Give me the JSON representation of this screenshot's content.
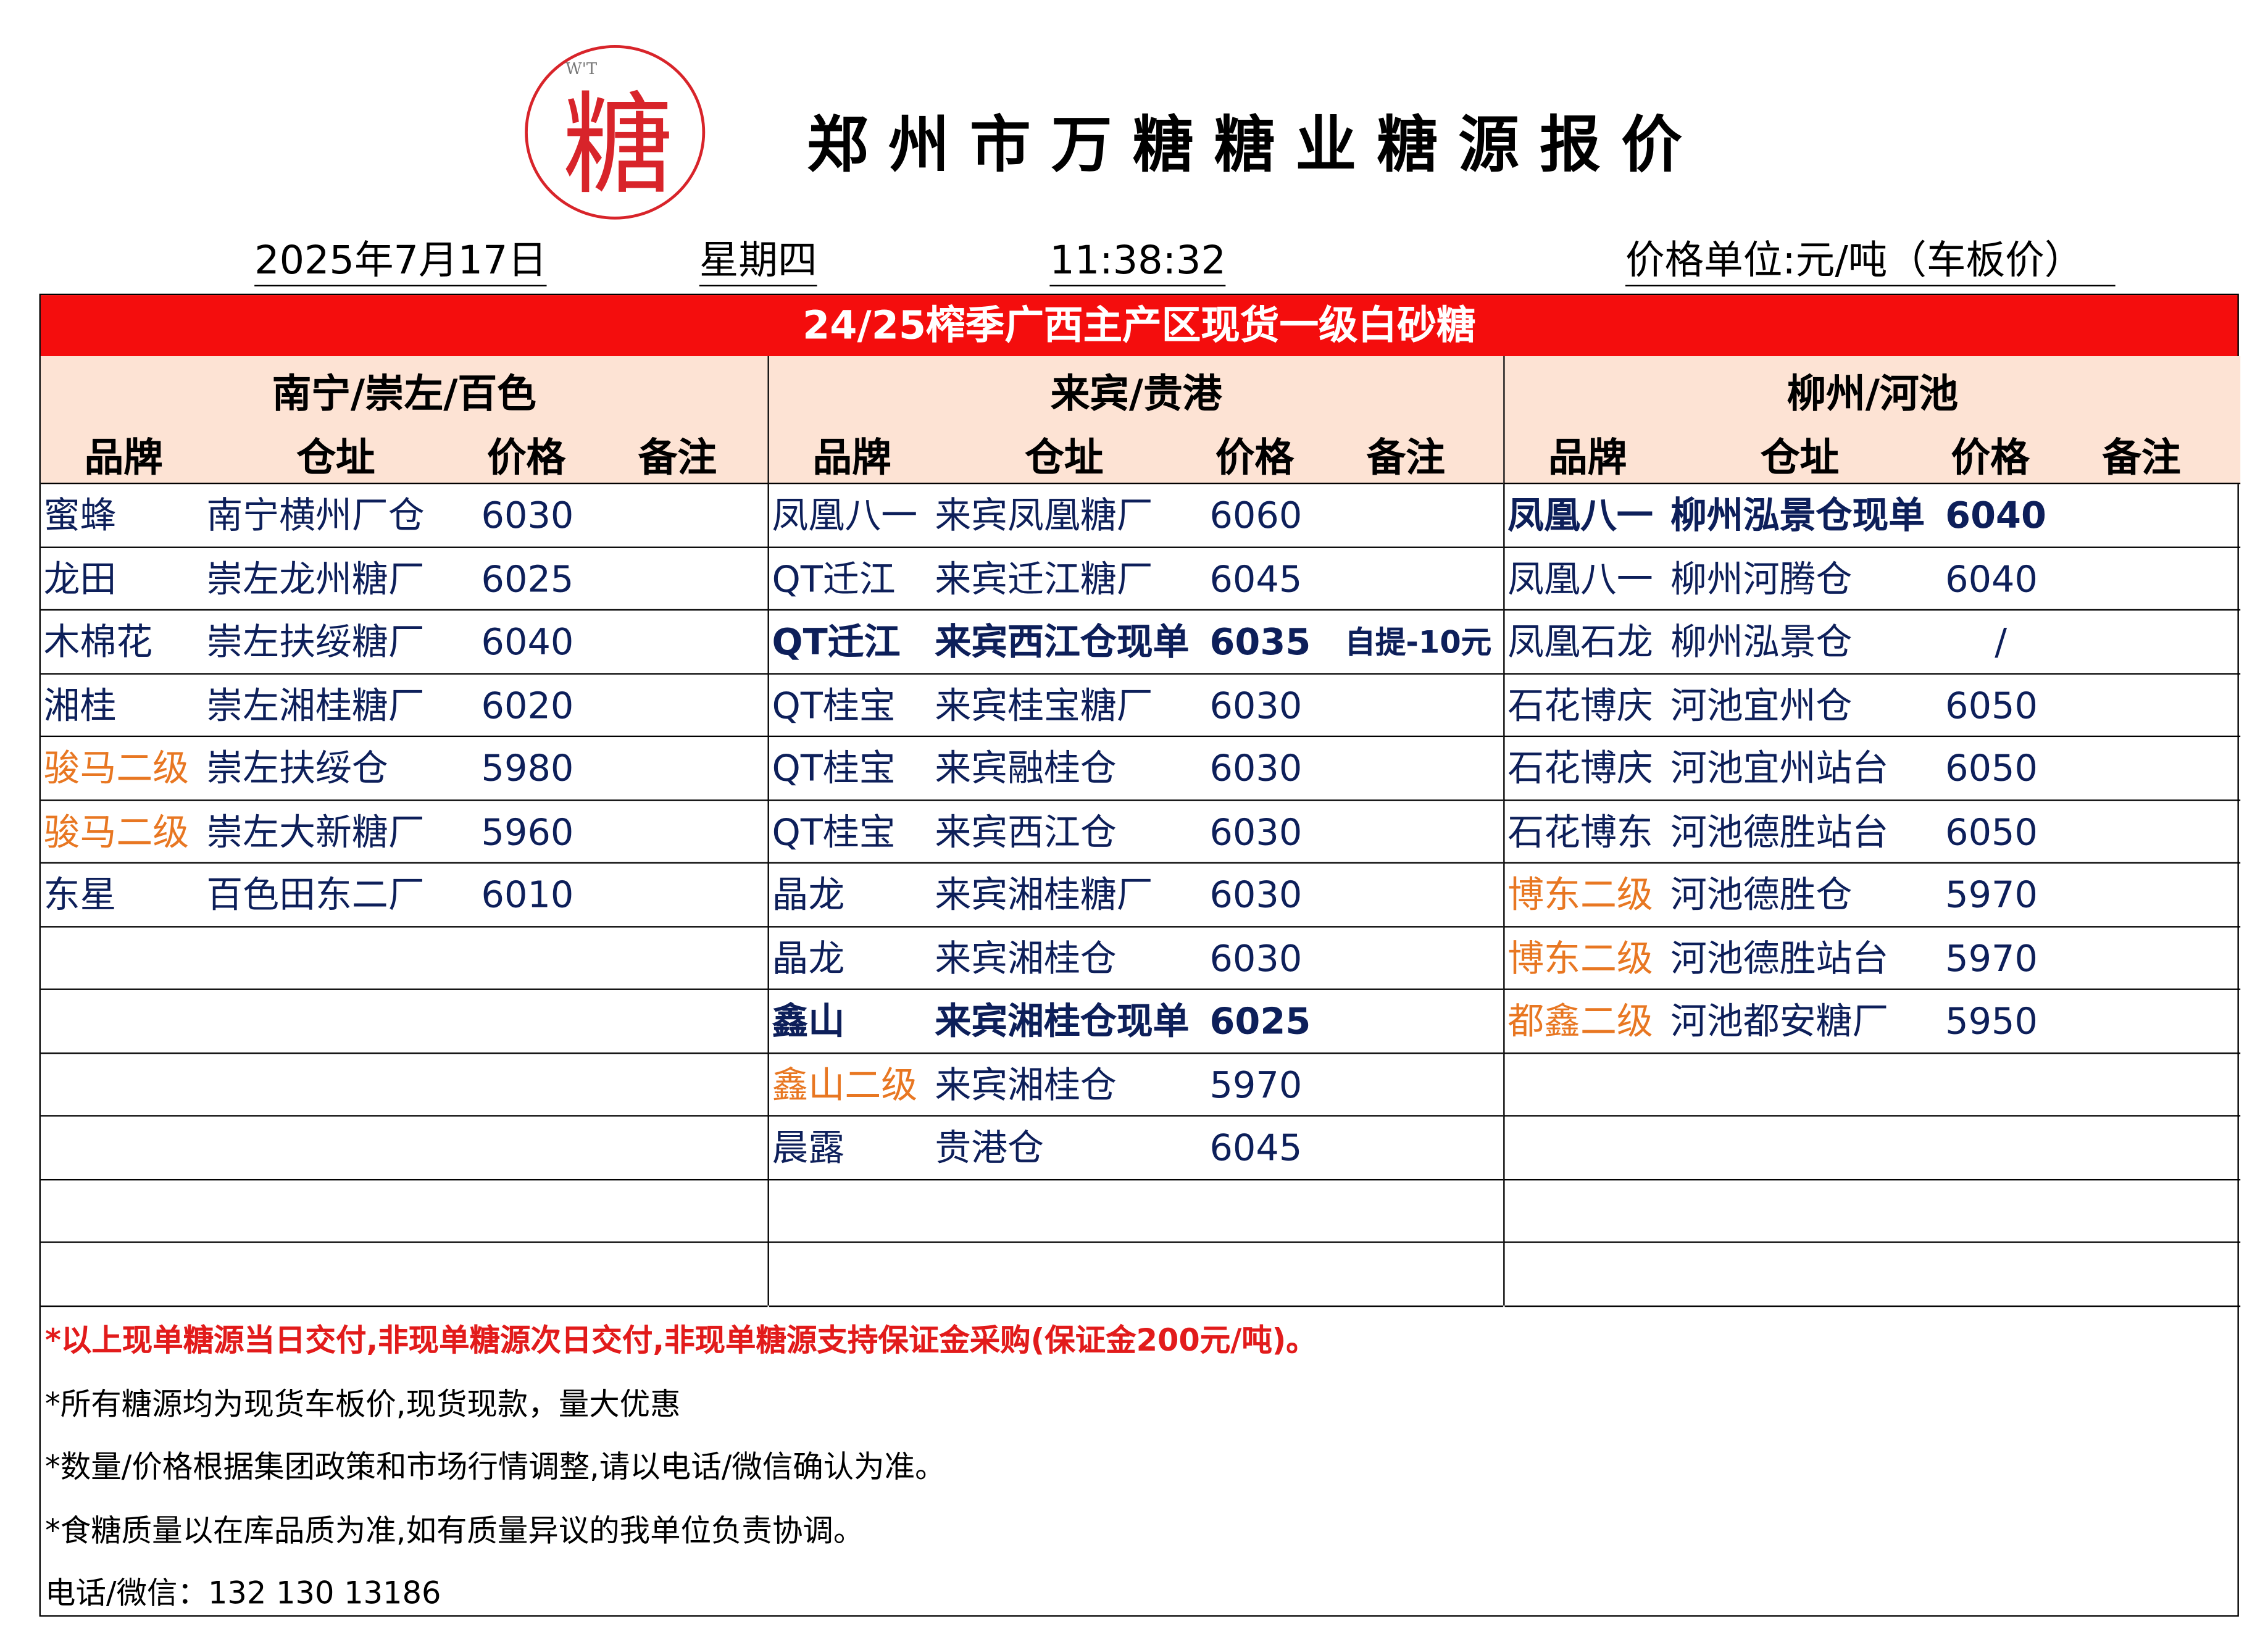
{
  "logo": {
    "char": "糖",
    "mark": "W'T"
  },
  "title": "郑州市万糖糖业糖源报价",
  "meta": {
    "date": "2025年7月17日",
    "weekday": "星期四",
    "time": "11:38:32",
    "unit": "价格单位:元/吨（车板价）"
  },
  "banner": "24/25榨季广西主产区现货一级白砂糖",
  "columns": {
    "brand": "品牌",
    "warehouse": "仓址",
    "price": "价格",
    "note": "备注"
  },
  "colors": {
    "text": "#0d1f5a",
    "orange": "#e87722",
    "banner": "#f40d0d",
    "header_bg": "#fde3d4"
  },
  "sections": [
    {
      "region": "南宁/崇左/百色",
      "rows": [
        {
          "brand": "蜜蜂",
          "warehouse": "南宁横州厂仓",
          "price": "6030",
          "note": ""
        },
        {
          "brand": "龙田",
          "warehouse": "崇左龙州糖厂",
          "price": "6025",
          "note": ""
        },
        {
          "brand": "木棉花",
          "warehouse": "崇左扶绥糖厂",
          "price": "6040",
          "note": ""
        },
        {
          "brand": "湘桂",
          "warehouse": "崇左湘桂糖厂",
          "price": "6020",
          "note": ""
        },
        {
          "brand": "骏马二级",
          "warehouse": "崇左扶绥仓",
          "price": "5980",
          "note": "",
          "orange": true
        },
        {
          "brand": "骏马二级",
          "warehouse": "崇左大新糖厂",
          "price": "5960",
          "note": "",
          "orange": true
        },
        {
          "brand": "东星",
          "warehouse": "百色田东二厂",
          "price": "6010",
          "note": ""
        }
      ]
    },
    {
      "region": "来宾/贵港",
      "rows": [
        {
          "brand": "凤凰八一",
          "warehouse": "来宾凤凰糖厂",
          "price": "6060",
          "note": ""
        },
        {
          "brand": "QT迁江",
          "warehouse": "来宾迁江糖厂",
          "price": "6045",
          "note": ""
        },
        {
          "brand": "QT迁江",
          "warehouse": "来宾西江仓现单",
          "price": "6035",
          "note": "自提-10元",
          "bold": true
        },
        {
          "brand": "QT桂宝",
          "warehouse": "来宾桂宝糖厂",
          "price": "6030",
          "note": ""
        },
        {
          "brand": "QT桂宝",
          "warehouse": "来宾融桂仓",
          "price": "6030",
          "note": ""
        },
        {
          "brand": "QT桂宝",
          "warehouse": "来宾西江仓",
          "price": "6030",
          "note": ""
        },
        {
          "brand": "晶龙",
          "warehouse": "来宾湘桂糖厂",
          "price": "6030",
          "note": ""
        },
        {
          "brand": "晶龙",
          "warehouse": "来宾湘桂仓",
          "price": "6030",
          "note": ""
        },
        {
          "brand": "鑫山",
          "warehouse": "来宾湘桂仓现单",
          "price": "6025",
          "note": "",
          "bold": true
        },
        {
          "brand": "鑫山二级",
          "warehouse": "来宾湘桂仓",
          "price": "5970",
          "note": "",
          "orange": true
        },
        {
          "brand": "晨露",
          "warehouse": "贵港仓",
          "price": "6045",
          "note": ""
        }
      ]
    },
    {
      "region": "柳州/河池",
      "rows": [
        {
          "brand": "凤凰八一",
          "warehouse": "柳州泓景仓现单",
          "price": "6040",
          "note": "",
          "bold": true
        },
        {
          "brand": "凤凰八一",
          "warehouse": "柳州河腾仓",
          "price": "6040",
          "note": ""
        },
        {
          "brand": "凤凰石龙",
          "warehouse": "柳州泓景仓",
          "price": "/",
          "note": ""
        },
        {
          "brand": "石花博庆",
          "warehouse": "河池宜州仓",
          "price": "6050",
          "note": ""
        },
        {
          "brand": "石花博庆",
          "warehouse": "河池宜州站台",
          "price": "6050",
          "note": ""
        },
        {
          "brand": "石花博东",
          "warehouse": "河池德胜站台",
          "price": "6050",
          "note": ""
        },
        {
          "brand": "博东二级",
          "warehouse": "河池德胜仓",
          "price": "5970",
          "note": "",
          "orange": true
        },
        {
          "brand": "博东二级",
          "warehouse": "河池德胜站台",
          "price": "5970",
          "note": "",
          "orange": true
        },
        {
          "brand": "都鑫二级",
          "warehouse": "河池都安糖厂",
          "price": "5950",
          "note": "",
          "orange": true
        }
      ]
    }
  ],
  "footer": [
    "*以上现单糖源当日交付,非现单糖源次日交付,非现单糖源支持保证金采购(保证金200元/吨)。",
    "*所有糖源均为现货车板价,现货现款，量大优惠",
    "*数量/价格根据集团政策和市场行情调整,请以电话/微信确认为准。",
    "*食糖质量以在库品质为准,如有质量异议的我单位负责协调。",
    "电话/微信：132 130 13186"
  ]
}
